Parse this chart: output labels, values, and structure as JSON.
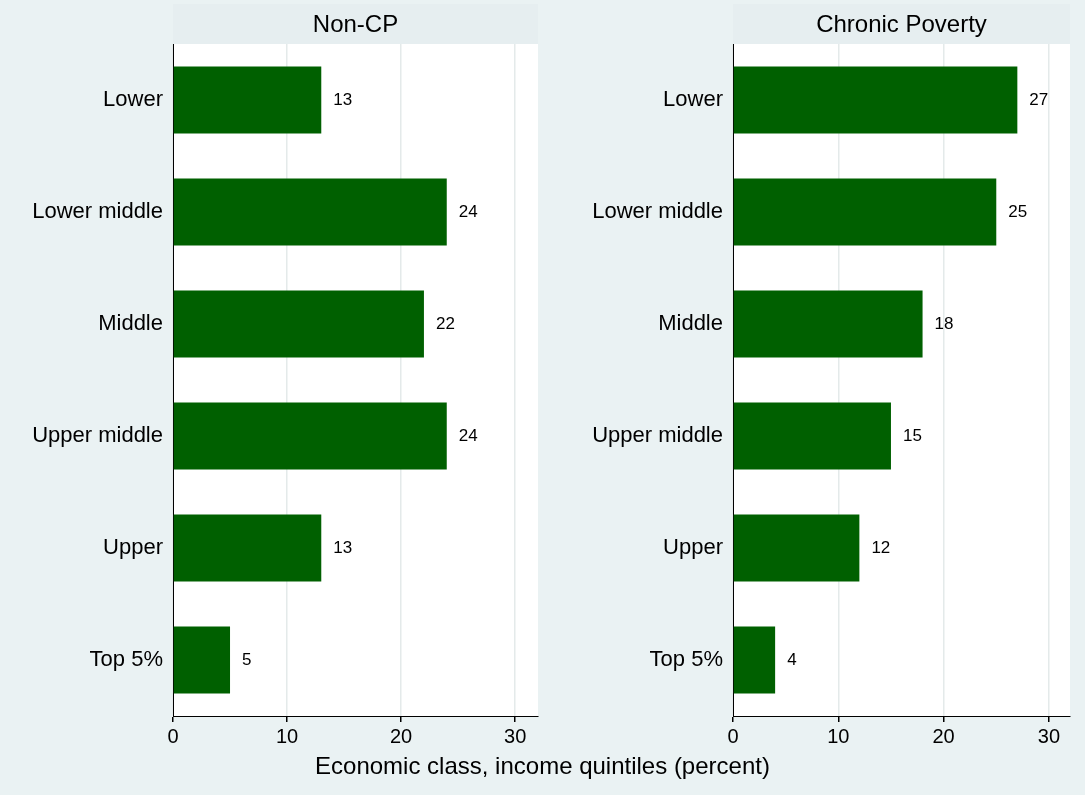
{
  "chart_data": [
    {
      "type": "bar",
      "orientation": "horizontal",
      "title": "Non-CP",
      "categories": [
        "Lower",
        "Lower middle",
        "Middle",
        "Upper middle",
        "Upper",
        "Top 5%"
      ],
      "values": [
        13,
        24,
        22,
        24,
        13,
        5
      ],
      "color": "#006000",
      "xlim": [
        0,
        32
      ],
      "xticks": [
        0,
        10,
        20,
        30
      ],
      "grid": "x",
      "data_labels": true,
      "legend": false,
      "xlabel": "Economic class, income quintiles  (percent)"
    },
    {
      "type": "bar",
      "orientation": "horizontal",
      "title": "Chronic Poverty",
      "categories": [
        "Lower",
        "Lower middle",
        "Middle",
        "Upper middle",
        "Upper",
        "Top 5%"
      ],
      "values": [
        27,
        25,
        18,
        15,
        12,
        4
      ],
      "color": "#006000",
      "xlim": [
        0,
        32
      ],
      "xticks": [
        0,
        10,
        20,
        30
      ],
      "grid": "x",
      "data_labels": true,
      "legend": false
    }
  ]
}
